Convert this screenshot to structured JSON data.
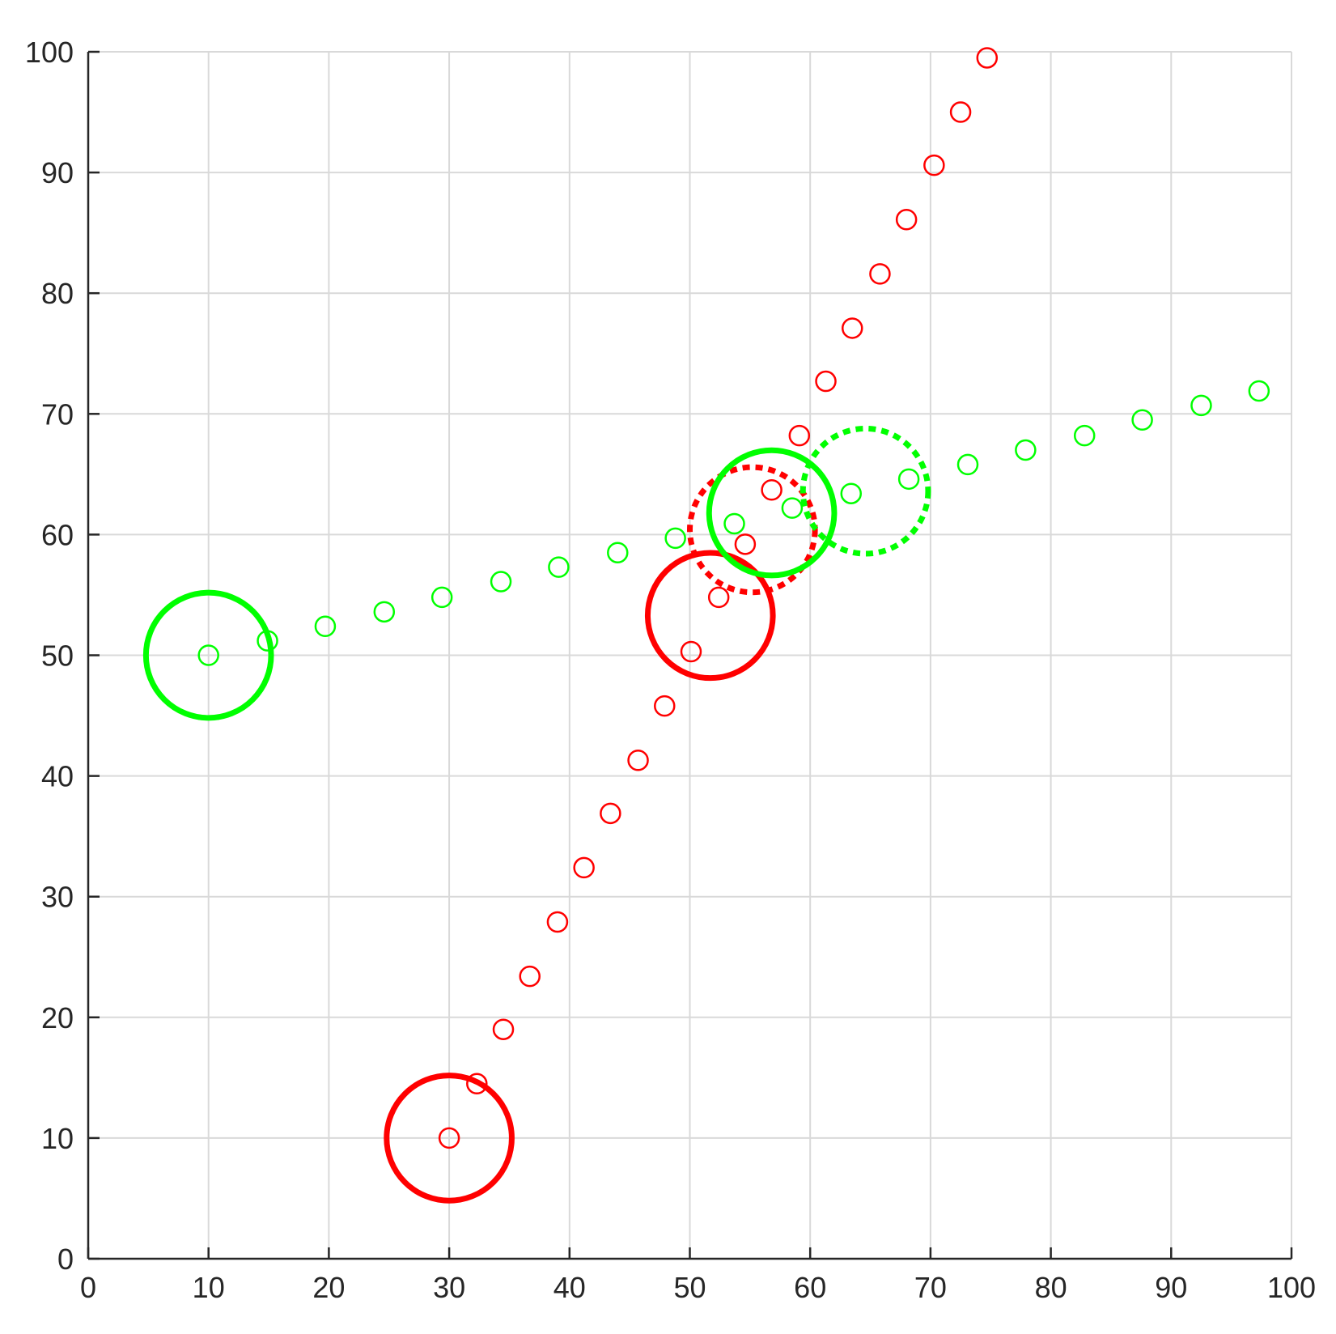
{
  "chart_data": {
    "type": "scatter",
    "title": "",
    "xlabel": "",
    "ylabel": "",
    "xlim": [
      0,
      100
    ],
    "ylim": [
      0,
      100
    ],
    "xticks": [
      "0",
      "10",
      "20",
      "30",
      "40",
      "50",
      "60",
      "70",
      "80",
      "90",
      "100"
    ],
    "yticks": [
      "0",
      "10",
      "20",
      "30",
      "40",
      "50",
      "60",
      "70",
      "80",
      "90",
      "100"
    ],
    "grid": true,
    "colors": {
      "red": "#ff0000",
      "green": "#00ff00",
      "axis": "#262626",
      "grid": "#d9d9d9"
    },
    "series": [
      {
        "color": "#ff0000",
        "marker": "small-circle",
        "points": [
          [
            30.0,
            10.0
          ],
          [
            32.3,
            14.5
          ],
          [
            34.5,
            19.0
          ],
          [
            36.7,
            23.4
          ],
          [
            39.0,
            27.9
          ],
          [
            41.2,
            32.4
          ],
          [
            43.4,
            36.9
          ],
          [
            45.7,
            41.3
          ],
          [
            47.9,
            45.8
          ],
          [
            50.1,
            50.3
          ],
          [
            52.4,
            54.8
          ],
          [
            54.6,
            59.2
          ],
          [
            56.8,
            63.7
          ],
          [
            59.1,
            68.2
          ],
          [
            61.3,
            72.7
          ],
          [
            63.5,
            77.1
          ],
          [
            65.8,
            81.6
          ],
          [
            68.0,
            86.1
          ],
          [
            70.3,
            90.6
          ],
          [
            72.5,
            95.0
          ],
          [
            74.7,
            99.5
          ]
        ]
      },
      {
        "color": "#00ff00",
        "marker": "small-circle",
        "points": [
          [
            10.0,
            50.0
          ],
          [
            14.9,
            51.2
          ],
          [
            19.7,
            52.4
          ],
          [
            24.6,
            53.6
          ],
          [
            29.4,
            54.8
          ],
          [
            34.3,
            56.1
          ],
          [
            39.1,
            57.3
          ],
          [
            44.0,
            58.5
          ],
          [
            48.8,
            59.7
          ],
          [
            53.7,
            60.9
          ],
          [
            58.5,
            62.2
          ],
          [
            63.4,
            63.4
          ],
          [
            68.2,
            64.6
          ],
          [
            73.1,
            65.8
          ],
          [
            77.9,
            67.0
          ],
          [
            82.8,
            68.2
          ],
          [
            87.6,
            69.5
          ],
          [
            92.5,
            70.7
          ],
          [
            97.3,
            71.9
          ]
        ]
      }
    ],
    "large_circles": [
      {
        "color": "#ff0000",
        "center": [
          30.0,
          10.0
        ],
        "radius": 5.2,
        "style": "solid"
      },
      {
        "color": "#ff0000",
        "center": [
          51.7,
          53.3
        ],
        "radius": 5.2,
        "style": "solid"
      },
      {
        "color": "#ff0000",
        "center": [
          55.2,
          60.4
        ],
        "radius": 5.2,
        "style": "dotted"
      },
      {
        "color": "#00ff00",
        "center": [
          10.0,
          50.0
        ],
        "radius": 5.2,
        "style": "solid"
      },
      {
        "color": "#00ff00",
        "center": [
          56.8,
          61.8
        ],
        "radius": 5.2,
        "style": "solid"
      },
      {
        "color": "#00ff00",
        "center": [
          64.6,
          63.6
        ],
        "radius": 5.2,
        "style": "dotted"
      }
    ]
  }
}
